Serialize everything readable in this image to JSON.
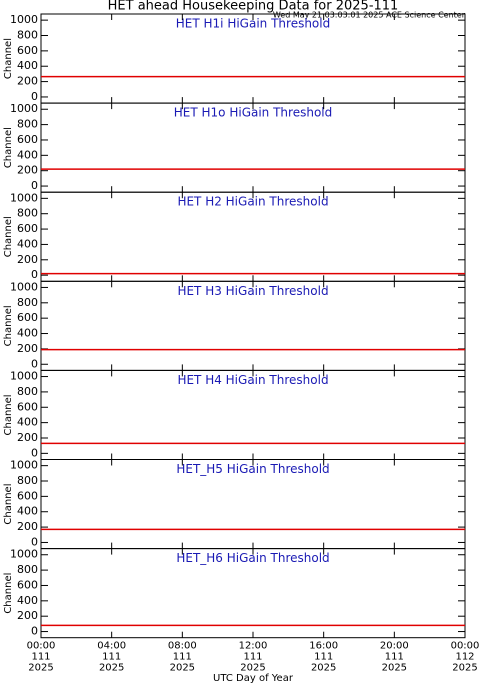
{
  "title": "HET ahead Housekeeping Data for 2025-111",
  "subtitle": "Wed May 21 03:03:01 2025 ACE Science Center",
  "chart_data": [
    {
      "type": "line",
      "title": "HET H1i HiGain Threshold",
      "ylabel": "Channel",
      "x": [
        0,
        24
      ],
      "xlim": [
        0,
        24
      ],
      "ylim": [
        -80,
        1080
      ],
      "yticks": [
        0,
        200,
        400,
        600,
        800,
        1000
      ],
      "series": [
        {
          "color": "#e00000",
          "values": [
            265,
            265
          ]
        }
      ]
    },
    {
      "type": "line",
      "title": "HET H1o HiGain Threshold",
      "ylabel": "Channel",
      "x": [
        0,
        24
      ],
      "xlim": [
        0,
        24
      ],
      "ylim": [
        -80,
        1080
      ],
      "yticks": [
        0,
        200,
        400,
        600,
        800,
        1000
      ],
      "series": [
        {
          "color": "#e00000",
          "values": [
            220,
            220
          ]
        }
      ]
    },
    {
      "type": "line",
      "title": "HET H2 HiGain Threshold",
      "ylabel": "Channel",
      "x": [
        0,
        24
      ],
      "xlim": [
        0,
        24
      ],
      "ylim": [
        -80,
        1080
      ],
      "yticks": [
        0,
        200,
        400,
        600,
        800,
        1000
      ],
      "series": [
        {
          "color": "#e00000",
          "values": [
            20,
            20
          ]
        }
      ]
    },
    {
      "type": "line",
      "title": "HET H3 HiGain Threshold",
      "ylabel": "Channel",
      "x": [
        0,
        24
      ],
      "xlim": [
        0,
        24
      ],
      "ylim": [
        -80,
        1080
      ],
      "yticks": [
        0,
        200,
        400,
        600,
        800,
        1000
      ],
      "series": [
        {
          "color": "#e00000",
          "values": [
            190,
            190
          ]
        }
      ]
    },
    {
      "type": "line",
      "title": "HET H4 HiGain Threshold",
      "ylabel": "Channel",
      "x": [
        0,
        24
      ],
      "xlim": [
        0,
        24
      ],
      "ylim": [
        -80,
        1080
      ],
      "yticks": [
        0,
        200,
        400,
        600,
        800,
        1000
      ],
      "series": [
        {
          "color": "#e00000",
          "values": [
            130,
            130
          ]
        }
      ]
    },
    {
      "type": "line",
      "title": "HET_H5 HiGain Threshold",
      "ylabel": "Channel",
      "x": [
        0,
        24
      ],
      "xlim": [
        0,
        24
      ],
      "ylim": [
        -80,
        1080
      ],
      "yticks": [
        0,
        200,
        400,
        600,
        800,
        1000
      ],
      "series": [
        {
          "color": "#e00000",
          "values": [
            170,
            170
          ]
        }
      ]
    },
    {
      "type": "line",
      "title": "HET_H6 HiGain Threshold",
      "ylabel": "Channel",
      "xlabel": "UTC Day of Year",
      "x": [
        0,
        24
      ],
      "xlim": [
        0,
        24
      ],
      "ylim": [
        -80,
        1080
      ],
      "yticks": [
        0,
        200,
        400,
        600,
        800,
        1000
      ],
      "xticks": [
        {
          "value": 0,
          "label": [
            "00:00",
            "111",
            "2025"
          ]
        },
        {
          "value": 4,
          "label": [
            "04:00",
            "111",
            "2025"
          ]
        },
        {
          "value": 8,
          "label": [
            "08:00",
            "111",
            "2025"
          ]
        },
        {
          "value": 12,
          "label": [
            "12:00",
            "111",
            "2025"
          ]
        },
        {
          "value": 16,
          "label": [
            "16:00",
            "111",
            "2025"
          ]
        },
        {
          "value": 20,
          "label": [
            "20:00",
            "111",
            "2025"
          ]
        },
        {
          "value": 24,
          "label": [
            "00:00",
            "112",
            "2025"
          ]
        }
      ],
      "series": [
        {
          "color": "#e00000",
          "values": [
            80,
            80
          ]
        }
      ]
    }
  ]
}
